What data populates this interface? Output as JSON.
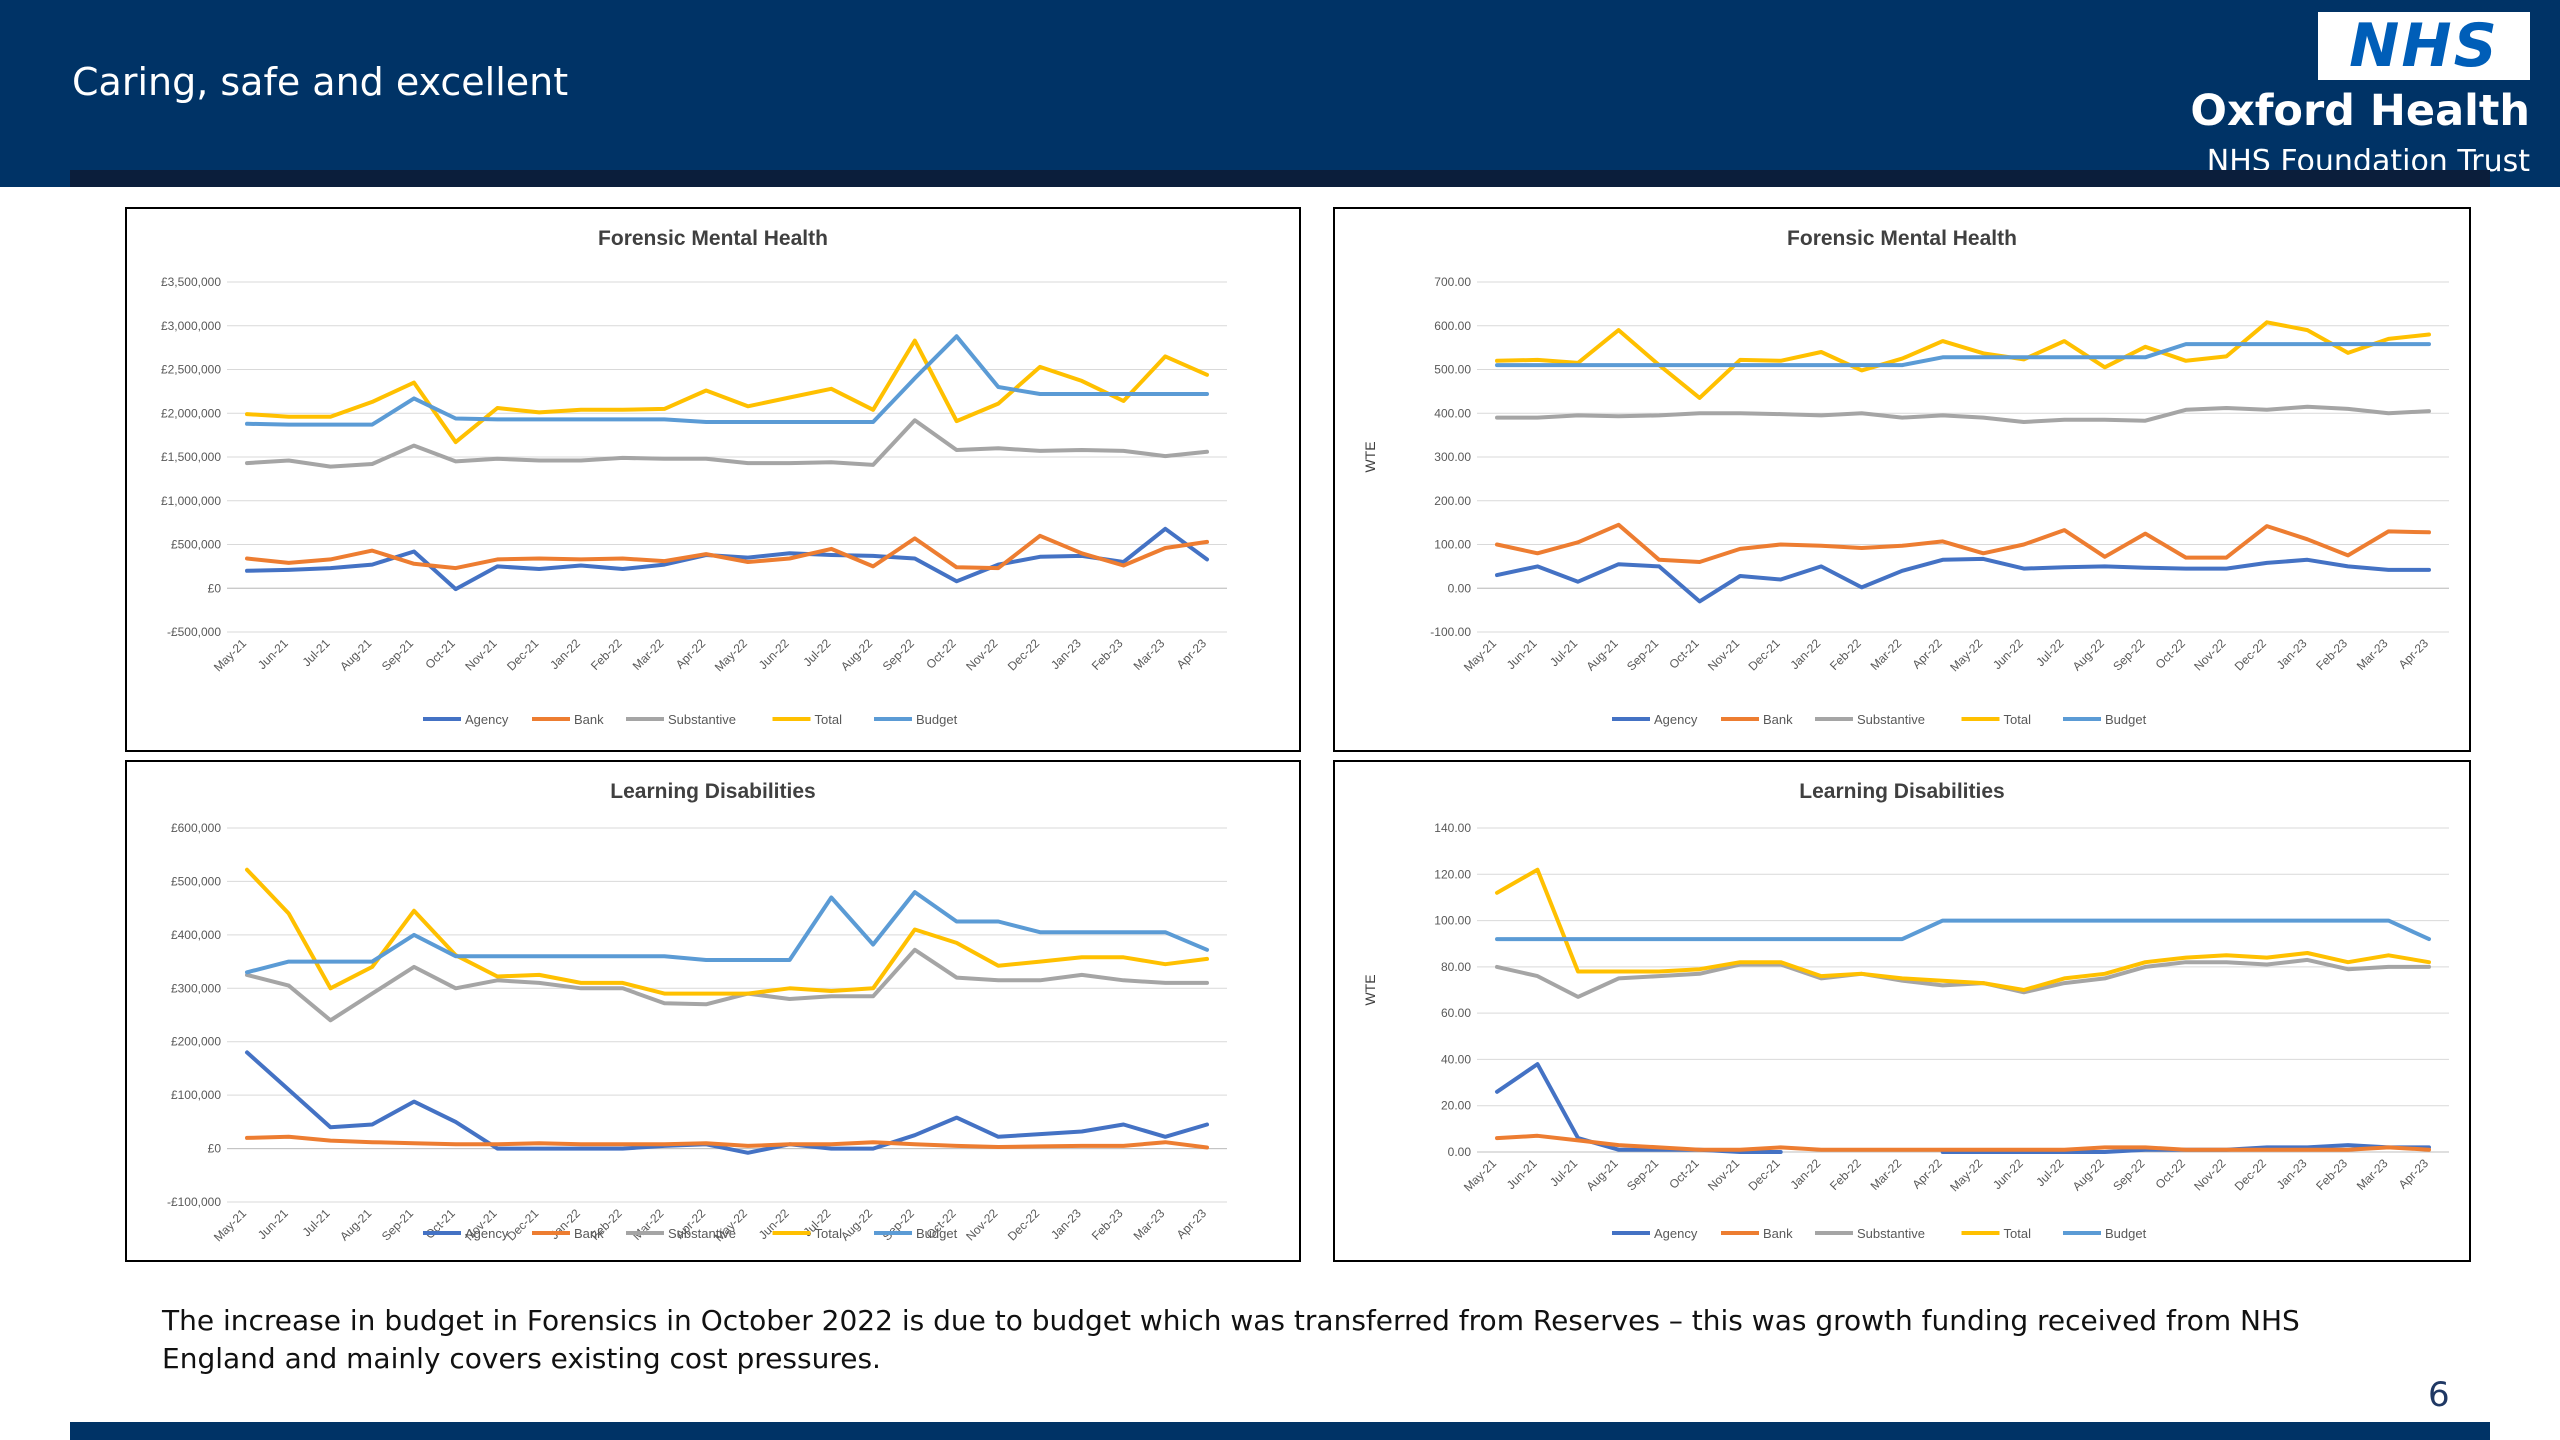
{
  "header": {
    "tagline": "Caring, safe and excellent",
    "logo_nhs": "NHS",
    "org_name": "Oxford Health",
    "org_sub": "NHS Foundation Trust"
  },
  "colors": {
    "header_bg": "#003366",
    "agency": "#4472C4",
    "bank": "#ED7D31",
    "substantive": "#A5A5A5",
    "total": "#FFC000",
    "budget": "#5B9BD5"
  },
  "note": "The increase in budget in Forensics in October 2022 is due to budget  which was transferred from Reserves – this was growth funding received from NHS England and mainly covers existing cost pressures.",
  "page_number": "6",
  "chart_data": [
    {
      "type": "line",
      "title": "Forensic Mental Health",
      "ylabel": "",
      "ylim": [
        -500000,
        3500000
      ],
      "yticks": [
        -500000,
        0,
        500000,
        1000000,
        1500000,
        2000000,
        2500000,
        3000000,
        3500000
      ],
      "ytick_labels": [
        "-£500,000",
        "£0",
        "£500,000",
        "£1,000,000",
        "£1,500,000",
        "£2,000,000",
        "£2,500,000",
        "£3,000,000",
        "£3,500,000"
      ],
      "categories": [
        "May-21",
        "Jun-21",
        "Jul-21",
        "Aug-21",
        "Sep-21",
        "Oct-21",
        "Nov-21",
        "Dec-21",
        "Jan-22",
        "Feb-22",
        "Mar-22",
        "Apr-22",
        "May-22",
        "Jun-22",
        "Jul-22",
        "Aug-22",
        "Sep-22",
        "Oct-22",
        "Nov-22",
        "Dec-22",
        "Jan-23",
        "Feb-23",
        "Mar-23",
        "Apr-23"
      ],
      "legend_position": "bottom",
      "grid": true,
      "series": [
        {
          "name": "Agency",
          "color": "#4472C4",
          "values": [
            200000,
            210000,
            230000,
            270000,
            420000,
            -10000,
            250000,
            220000,
            260000,
            220000,
            270000,
            380000,
            350000,
            400000,
            380000,
            370000,
            340000,
            80000,
            270000,
            360000,
            370000,
            300000,
            680000,
            330000
          ]
        },
        {
          "name": "Bank",
          "color": "#ED7D31",
          "values": [
            340000,
            290000,
            330000,
            430000,
            280000,
            230000,
            330000,
            340000,
            330000,
            340000,
            310000,
            390000,
            300000,
            340000,
            450000,
            250000,
            570000,
            240000,
            230000,
            600000,
            400000,
            260000,
            460000,
            530000
          ]
        },
        {
          "name": "Substantive",
          "color": "#A5A5A5",
          "values": [
            1430000,
            1460000,
            1390000,
            1420000,
            1630000,
            1450000,
            1480000,
            1460000,
            1460000,
            1490000,
            1480000,
            1480000,
            1430000,
            1430000,
            1440000,
            1410000,
            1920000,
            1580000,
            1600000,
            1570000,
            1580000,
            1570000,
            1510000,
            1560000
          ]
        },
        {
          "name": "Total",
          "color": "#FFC000",
          "values": [
            1990000,
            1960000,
            1960000,
            2130000,
            2350000,
            1670000,
            2060000,
            2010000,
            2040000,
            2040000,
            2050000,
            2260000,
            2080000,
            2180000,
            2280000,
            2040000,
            2830000,
            1910000,
            2110000,
            2530000,
            2370000,
            2140000,
            2650000,
            2440000
          ]
        },
        {
          "name": "Budget",
          "color": "#5B9BD5",
          "values": [
            1880000,
            1870000,
            1870000,
            1870000,
            2170000,
            1940000,
            1930000,
            1930000,
            1930000,
            1930000,
            1930000,
            1900000,
            1900000,
            1900000,
            1900000,
            1900000,
            2400000,
            2880000,
            2300000,
            2220000,
            2220000,
            2220000,
            2220000,
            2220000
          ]
        }
      ]
    },
    {
      "type": "line",
      "title": "Forensic Mental Health",
      "ylabel": "WTE",
      "ylim": [
        -100,
        700
      ],
      "yticks": [
        -100,
        0,
        100,
        200,
        300,
        400,
        500,
        600,
        700
      ],
      "ytick_labels": [
        "-100.00",
        "0.00",
        "100.00",
        "200.00",
        "300.00",
        "400.00",
        "500.00",
        "600.00",
        "700.00"
      ],
      "categories": [
        "May-21",
        "Jun-21",
        "Jul-21",
        "Aug-21",
        "Sep-21",
        "Oct-21",
        "Nov-21",
        "Dec-21",
        "Jan-22",
        "Feb-22",
        "Mar-22",
        "Apr-22",
        "May-22",
        "Jun-22",
        "Jul-22",
        "Aug-22",
        "Sep-22",
        "Oct-22",
        "Nov-22",
        "Dec-22",
        "Jan-23",
        "Feb-23",
        "Mar-23",
        "Apr-23"
      ],
      "legend_position": "bottom",
      "grid": true,
      "series": [
        {
          "name": "Agency",
          "color": "#4472C4",
          "values": [
            30,
            50,
            15,
            55,
            50,
            -30,
            28,
            20,
            50,
            2,
            40,
            65,
            67,
            45,
            48,
            50,
            47,
            45,
            45,
            58,
            65,
            50,
            42,
            42
          ]
        },
        {
          "name": "Bank",
          "color": "#ED7D31",
          "values": [
            100,
            80,
            105,
            145,
            65,
            60,
            90,
            100,
            97,
            92,
            97,
            107,
            80,
            100,
            133,
            72,
            125,
            70,
            70,
            142,
            112,
            75,
            130,
            128
          ]
        },
        {
          "name": "Substantive",
          "color": "#A5A5A5",
          "values": [
            390,
            390,
            395,
            393,
            395,
            400,
            400,
            398,
            395,
            400,
            390,
            395,
            390,
            380,
            385,
            385,
            383,
            408,
            412,
            408,
            415,
            410,
            400,
            405
          ]
        },
        {
          "name": "Total",
          "color": "#FFC000",
          "values": [
            520,
            522,
            515,
            590,
            510,
            435,
            522,
            520,
            540,
            498,
            525,
            565,
            537,
            523,
            565,
            505,
            552,
            520,
            530,
            608,
            590,
            538,
            570,
            580
          ]
        },
        {
          "name": "Budget",
          "color": "#5B9BD5",
          "values": [
            510,
            510,
            510,
            510,
            510,
            510,
            510,
            510,
            510,
            510,
            510,
            528,
            528,
            528,
            528,
            528,
            528,
            558,
            558,
            558,
            558,
            558,
            558,
            558
          ]
        }
      ]
    },
    {
      "type": "line",
      "title": "Learning Disabilities",
      "ylabel": "",
      "ylim": [
        -100000,
        600000
      ],
      "yticks": [
        -100000,
        0,
        100000,
        200000,
        300000,
        400000,
        500000,
        600000
      ],
      "ytick_labels": [
        "-£100,000",
        "£0",
        "£100,000",
        "£200,000",
        "£300,000",
        "£400,000",
        "£500,000",
        "£600,000"
      ],
      "categories": [
        "May-21",
        "Jun-21",
        "Jul-21",
        "Aug-21",
        "Sep-21",
        "Oct-21",
        "Nov-21",
        "Dec-21",
        "Jan-22",
        "Feb-22",
        "Mar-22",
        "Apr-22",
        "May-22",
        "Jun-22",
        "Jul-22",
        "Aug-22",
        "Sep-22",
        "Oct-22",
        "Nov-22",
        "Dec-22",
        "Jan-23",
        "Feb-23",
        "Mar-23",
        "Apr-23"
      ],
      "legend_position": "bottom",
      "grid": true,
      "series": [
        {
          "name": "Agency",
          "color": "#4472C4",
          "values": [
            180000,
            110000,
            40000,
            45000,
            88000,
            50000,
            0,
            0,
            0,
            0,
            5000,
            8000,
            -8000,
            8000,
            0,
            0,
            25000,
            58000,
            22000,
            27000,
            32000,
            45000,
            22000,
            45000
          ]
        },
        {
          "name": "Bank",
          "color": "#ED7D31",
          "values": [
            20000,
            22000,
            15000,
            12000,
            10000,
            8000,
            8000,
            10000,
            8000,
            8000,
            8000,
            10000,
            5000,
            8000,
            8000,
            12000,
            8000,
            5000,
            3000,
            4000,
            5000,
            5000,
            12000,
            2000
          ]
        },
        {
          "name": "Substantive",
          "color": "#A5A5A5",
          "values": [
            325000,
            305000,
            240000,
            290000,
            340000,
            300000,
            315000,
            310000,
            300000,
            300000,
            272000,
            270000,
            290000,
            280000,
            285000,
            285000,
            372000,
            320000,
            315000,
            315000,
            325000,
            315000,
            310000,
            310000
          ]
        },
        {
          "name": "Total",
          "color": "#FFC000",
          "values": [
            522000,
            440000,
            300000,
            340000,
            445000,
            362000,
            322000,
            325000,
            310000,
            310000,
            290000,
            290000,
            290000,
            300000,
            295000,
            300000,
            410000,
            385000,
            342000,
            350000,
            358000,
            358000,
            345000,
            355000
          ]
        },
        {
          "name": "Budget",
          "color": "#5B9BD5",
          "values": [
            330000,
            350000,
            350000,
            350000,
            400000,
            360000,
            360000,
            360000,
            360000,
            360000,
            360000,
            353000,
            353000,
            353000,
            470000,
            382000,
            480000,
            425000,
            425000,
            405000,
            405000,
            405000,
            405000,
            372000
          ]
        }
      ]
    },
    {
      "type": "line",
      "title": "Learning Disabilities",
      "ylabel": "WTE",
      "ylim": [
        0,
        140
      ],
      "yticks": [
        0,
        20,
        40,
        60,
        80,
        100,
        120,
        140
      ],
      "ytick_labels": [
        "0.00",
        "20.00",
        "40.00",
        "60.00",
        "80.00",
        "100.00",
        "120.00",
        "140.00"
      ],
      "categories": [
        "May-21",
        "Jun-21",
        "Jul-21",
        "Aug-21",
        "Sep-21",
        "Oct-21",
        "Nov-21",
        "Dec-21",
        "Jan-22",
        "Feb-22",
        "Mar-22",
        "Apr-22",
        "May-22",
        "Jun-22",
        "Jul-22",
        "Aug-22",
        "Sep-22",
        "Oct-22",
        "Nov-22",
        "Dec-22",
        "Jan-23",
        "Feb-23",
        "Mar-23",
        "Apr-23"
      ],
      "legend_position": "bottom",
      "grid": true,
      "series": [
        {
          "name": "Agency",
          "color": "#4472C4",
          "values": [
            26,
            38,
            6,
            1,
            1,
            1,
            0,
            0,
            null,
            null,
            null,
            0,
            0,
            0,
            0,
            0,
            1,
            1,
            1,
            2,
            2,
            3,
            2,
            2
          ]
        },
        {
          "name": "Bank",
          "color": "#ED7D31",
          "values": [
            6,
            7,
            5,
            3,
            2,
            1,
            1,
            2,
            1,
            1,
            1,
            1,
            1,
            1,
            1,
            2,
            2,
            1,
            1,
            1,
            1,
            1,
            2,
            1
          ]
        },
        {
          "name": "Substantive",
          "color": "#A5A5A5",
          "values": [
            80,
            76,
            67,
            75,
            76,
            77,
            81,
            81,
            75,
            77,
            74,
            72,
            73,
            69,
            73,
            75,
            80,
            82,
            82,
            81,
            83,
            79,
            80,
            80
          ]
        },
        {
          "name": "Total",
          "color": "#FFC000",
          "values": [
            112,
            122,
            78,
            78,
            78,
            79,
            82,
            82,
            76,
            77,
            75,
            74,
            73,
            70,
            75,
            77,
            82,
            84,
            85,
            84,
            86,
            82,
            85,
            82
          ]
        },
        {
          "name": "Budget",
          "color": "#5B9BD5",
          "values": [
            92,
            92,
            92,
            92,
            92,
            92,
            92,
            92,
            92,
            92,
            92,
            100,
            100,
            100,
            100,
            100,
            100,
            100,
            100,
            100,
            100,
            100,
            100,
            92
          ]
        }
      ]
    }
  ]
}
